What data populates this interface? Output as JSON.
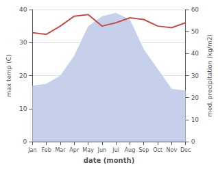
{
  "chart_data": {
    "type": "line",
    "categories": [
      "Jan",
      "Feb",
      "Mar",
      "Apr",
      "May",
      "Jun",
      "Jul",
      "Aug",
      "Sep",
      "Oct",
      "Nov",
      "Dec"
    ],
    "series": [
      {
        "type": "area",
        "color": "#c6d0ea",
        "values": [
          17,
          17.5,
          20,
          26,
          35,
          38,
          39,
          37,
          28,
          22,
          16,
          15.5
        ]
      },
      {
        "type": "line",
        "color": "#c0504d",
        "values": [
          33,
          32.5,
          35,
          38,
          38.5,
          35,
          36,
          37.5,
          37,
          35,
          34.5,
          36
        ]
      }
    ],
    "xlabel": "date (month)",
    "ylabel": "max temp (C)",
    "y2label": "med. precipitation (kg/m2)",
    "ylim": [
      0,
      40
    ],
    "yticks": [
      0,
      10,
      20,
      30,
      40
    ],
    "y2lim": [
      0,
      60
    ],
    "y2ticks": [
      0,
      10,
      20,
      30,
      40,
      50,
      60
    ],
    "grid": true
  }
}
